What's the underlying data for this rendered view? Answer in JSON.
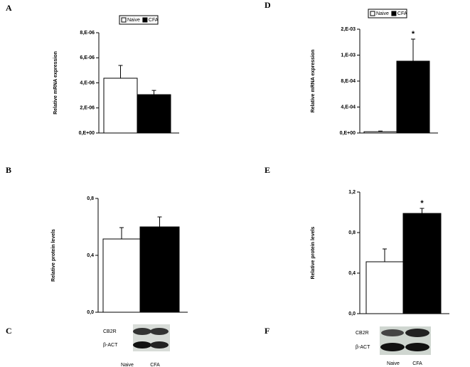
{
  "chart_data": [
    {
      "type": "bar",
      "panel_label": "A",
      "ylabel": "Relative mRNA expression",
      "legend": true,
      "ylim": [
        0,
        8e-06
      ],
      "yticks": [
        {
          "value": 0,
          "label": "0,E+00"
        },
        {
          "value": 2e-06,
          "label": "2,E-06"
        },
        {
          "value": 4e-06,
          "label": "4,E-06"
        },
        {
          "value": 6e-06,
          "label": "6,E-06"
        },
        {
          "value": 8e-06,
          "label": "8,E-06"
        }
      ],
      "series": [
        {
          "name": "Naive",
          "color": "#ffffff",
          "values": [
            4.37e-06
          ],
          "errors": [
            1.02e-06
          ]
        },
        {
          "name": "CFA",
          "color": "#000000",
          "values": [
            3.06e-06
          ],
          "errors": [
            3.4e-07
          ]
        }
      ]
    },
    {
      "type": "bar",
      "panel_label": "B",
      "ylabel": "Relative protein levels",
      "legend": false,
      "ylim": [
        0,
        0.8
      ],
      "yticks": [
        {
          "value": 0,
          "label": "0,0"
        },
        {
          "value": 0.4,
          "label": "0,4"
        },
        {
          "value": 0.8,
          "label": "0,8"
        }
      ],
      "series": [
        {
          "name": "Naive",
          "color": "#ffffff",
          "values": [
            0.515
          ],
          "errors": [
            0.08
          ]
        },
        {
          "name": "CFA",
          "color": "#000000",
          "values": [
            0.6
          ],
          "errors": [
            0.07
          ]
        }
      ]
    },
    {
      "type": "bar",
      "panel_label": "D",
      "ylabel": "Relative mRNA expression",
      "legend": true,
      "ylim": [
        0,
        0.0016
      ],
      "yticks": [
        {
          "value": 0,
          "label": "0,E+00"
        },
        {
          "value": 0.0004,
          "label": "4,E-04"
        },
        {
          "value": 0.0008,
          "label": "8,E-04"
        },
        {
          "value": 0.0012,
          "label": "1,E-03"
        },
        {
          "value": 0.0016,
          "label": "2,E-03"
        }
      ],
      "series": [
        {
          "name": "Naive",
          "color": "#ffffff",
          "values": [
            2e-05
          ],
          "errors": [
            1e-05
          ]
        },
        {
          "name": "CFA",
          "color": "#000000",
          "values": [
            0.001107
          ],
          "errors": [
            0.00034
          ],
          "significance": "*"
        }
      ]
    },
    {
      "type": "bar",
      "panel_label": "E",
      "ylabel": "Relative protein levels",
      "legend": false,
      "ylim": [
        0,
        1.2
      ],
      "yticks": [
        {
          "value": 0,
          "label": "0,0"
        },
        {
          "value": 0.4,
          "label": "0,4"
        },
        {
          "value": 0.8,
          "label": "0,8"
        },
        {
          "value": 1.2,
          "label": "1,2"
        }
      ],
      "series": [
        {
          "name": "Naive",
          "color": "#ffffff",
          "values": [
            0.512
          ],
          "errors": [
            0.127
          ]
        },
        {
          "name": "CFA",
          "color": "#000000",
          "values": [
            0.989
          ],
          "errors": [
            0.05
          ],
          "significance": "*"
        }
      ]
    }
  ],
  "blots": [
    {
      "panel_label": "C",
      "rows": [
        "CB2R",
        "β-ACT"
      ],
      "lanes": [
        "Naive",
        "CFA"
      ]
    },
    {
      "panel_label": "F",
      "rows": [
        "CB2R",
        "β-ACT"
      ],
      "lanes": [
        "Naive",
        "CFA"
      ]
    }
  ]
}
